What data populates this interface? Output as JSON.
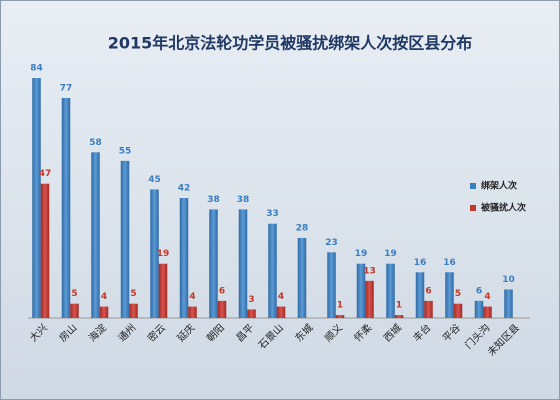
{
  "chart_data": {
    "type": "bar",
    "title": "2015年北京法轮功学员被骚扰绑架人次按区县分布",
    "categories": [
      "大兴",
      "房山",
      "海淀",
      "通州",
      "密云",
      "延庆",
      "朝阳",
      "昌平",
      "石景山",
      "东城",
      "顺义",
      "怀柔",
      "西城",
      "丰台",
      "平谷",
      "门头沟",
      "未知区县"
    ],
    "series": [
      {
        "name": "绑架人次",
        "color": "#3a7ebf",
        "values": [
          84,
          77,
          58,
          55,
          45,
          42,
          38,
          38,
          33,
          28,
          23,
          19,
          19,
          16,
          16,
          6,
          10
        ]
      },
      {
        "name": "被骚扰人次",
        "color": "#c0392b",
        "values": [
          47,
          5,
          4,
          5,
          19,
          4,
          6,
          3,
          4,
          null,
          1,
          13,
          1,
          6,
          5,
          4,
          null
        ]
      }
    ]
  }
}
